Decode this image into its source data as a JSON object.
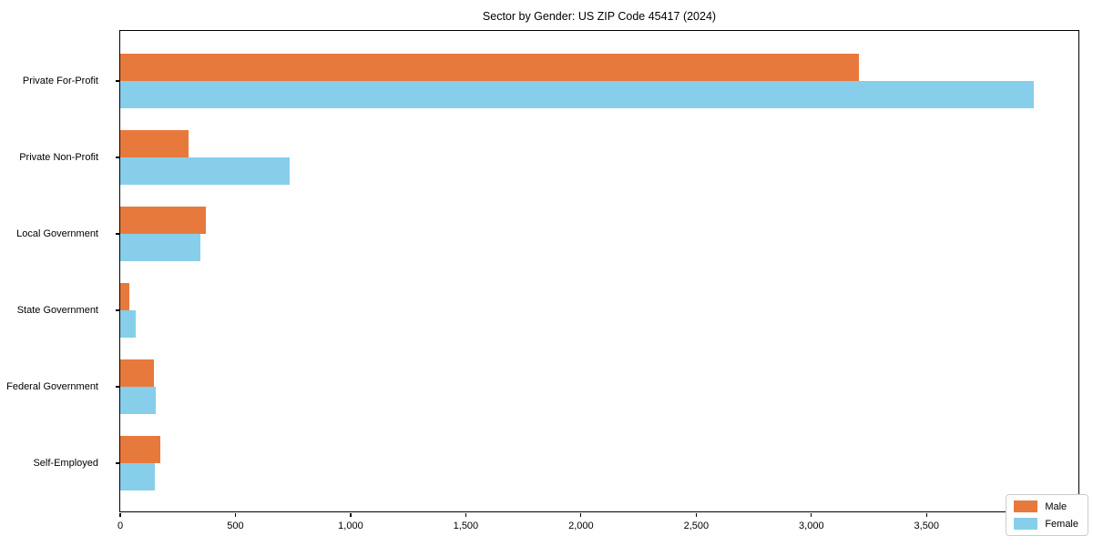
{
  "chart_data": {
    "type": "bar",
    "orientation": "horizontal",
    "title": "Sector by Gender: US ZIP Code 45417 (2024)",
    "categories": [
      "Private For-Profit",
      "Private Non-Profit",
      "Local Government",
      "State Government",
      "Federal Government",
      "Self-Employed"
    ],
    "series": [
      {
        "name": "Male",
        "color": "#E8793D",
        "values": [
          3205,
          295,
          370,
          38,
          148,
          175
        ]
      },
      {
        "name": "Female",
        "color": "#87CEEB",
        "values": [
          3967,
          735,
          347,
          66,
          155,
          150
        ]
      }
    ],
    "xlim": [
      0,
      4167
    ],
    "x_ticks": [
      0,
      500,
      1000,
      1500,
      2000,
      2500,
      3000,
      3500,
      4000
    ],
    "x_tick_labels": [
      "0",
      "500",
      "1,000",
      "1,500",
      "2,000",
      "2,500",
      "3,000",
      "3,500",
      "4,000"
    ],
    "ylabel": "",
    "xlabel": "",
    "grid": false,
    "legend_position": "lower right",
    "category_order": "top-to-bottom"
  }
}
